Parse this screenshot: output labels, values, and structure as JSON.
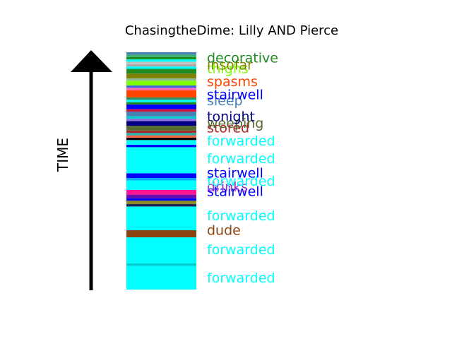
{
  "chart_data": {
    "type": "bar",
    "title": "ChasingtheDime: Lilly AND Pierce",
    "ylabel": "TIME",
    "ylim": [
      0,
      100
    ],
    "segments": [
      {
        "start": 0,
        "end": 10,
        "color": "#00ffff"
      },
      {
        "start": 10,
        "end": 11,
        "color": "#00cccc"
      },
      {
        "start": 11,
        "end": 22,
        "color": "#00ffff"
      },
      {
        "start": 22,
        "end": 25,
        "color": "#8b4513"
      },
      {
        "start": 25,
        "end": 35,
        "color": "#00ffff"
      },
      {
        "start": 35,
        "end": 36,
        "color": "#1e1e5a"
      },
      {
        "start": 36,
        "end": 37.5,
        "color": "#8a8a2a"
      },
      {
        "start": 37.5,
        "end": 38.5,
        "color": "#0000ff"
      },
      {
        "start": 38.5,
        "end": 40,
        "color": "#6a0dad"
      },
      {
        "start": 40,
        "end": 42,
        "color": "#ff1493"
      },
      {
        "start": 42,
        "end": 46,
        "color": "#00ffff"
      },
      {
        "start": 46,
        "end": 47,
        "color": "#00aaff"
      },
      {
        "start": 47,
        "end": 49,
        "color": "#0000ff"
      },
      {
        "start": 49,
        "end": 60,
        "color": "#00ffff"
      },
      {
        "start": 60,
        "end": 61,
        "color": "#0000ff"
      },
      {
        "start": 61,
        "end": 63,
        "color": "#00ffff"
      },
      {
        "start": 63,
        "end": 64,
        "color": "#000000"
      },
      {
        "start": 64,
        "end": 65,
        "color": "#ff6347"
      },
      {
        "start": 65,
        "end": 66,
        "color": "#20b2aa"
      },
      {
        "start": 66,
        "end": 67,
        "color": "#a52a2a"
      },
      {
        "start": 67,
        "end": 69,
        "color": "#556b2f"
      },
      {
        "start": 69,
        "end": 71,
        "color": "#000080"
      },
      {
        "start": 71,
        "end": 72,
        "color": "#9370db"
      },
      {
        "start": 72,
        "end": 73,
        "color": "#00ced1"
      },
      {
        "start": 73,
        "end": 75,
        "color": "#4682b4"
      },
      {
        "start": 75,
        "end": 76,
        "color": "#dc143c"
      },
      {
        "start": 76,
        "end": 78,
        "color": "#0000ff"
      },
      {
        "start": 78,
        "end": 79,
        "color": "#228b22"
      },
      {
        "start": 79,
        "end": 80,
        "color": "#00ffff"
      },
      {
        "start": 80,
        "end": 81,
        "color": "#2e8b57"
      },
      {
        "start": 81,
        "end": 84,
        "color": "#ff4500"
      },
      {
        "start": 84,
        "end": 85,
        "color": "#ff69b4"
      },
      {
        "start": 85,
        "end": 86,
        "color": "#4169e1"
      },
      {
        "start": 86,
        "end": 88,
        "color": "#7fff00"
      },
      {
        "start": 88,
        "end": 89,
        "color": "#8fbc8f"
      },
      {
        "start": 89,
        "end": 91,
        "color": "#808000"
      },
      {
        "start": 91,
        "end": 93,
        "color": "#228b22"
      },
      {
        "start": 93,
        "end": 94,
        "color": "#00ffff"
      },
      {
        "start": 94,
        "end": 95,
        "color": "#a9a9a9"
      },
      {
        "start": 95,
        "end": 96,
        "color": "#c0c0c0"
      },
      {
        "start": 96,
        "end": 97,
        "color": "#00ffff"
      },
      {
        "start": 97,
        "end": 98,
        "color": "#228b22"
      },
      {
        "start": 98,
        "end": 99,
        "color": "#3cb371"
      },
      {
        "start": 99,
        "end": 100,
        "color": "#4682b4"
      }
    ],
    "labels": [
      {
        "text": "forwarded",
        "y": 5,
        "color": "#00ffff"
      },
      {
        "text": "forwarded",
        "y": 17,
        "color": "#00ffff"
      },
      {
        "text": "dude",
        "y": 25.2,
        "color": "#8b4513"
      },
      {
        "text": "forwarded",
        "y": 31.3,
        "color": "#00ffff"
      },
      {
        "text": "stairwell",
        "y": 41.5,
        "color": "#0000ff"
      },
      {
        "text": "drinks",
        "y": 43.5,
        "color": "#9932cc"
      },
      {
        "text": "forwarded",
        "y": 45.8,
        "color": "#00ffff"
      },
      {
        "text": "stairwell",
        "y": 49.3,
        "color": "#0000ff"
      },
      {
        "text": "forwarded",
        "y": 55.3,
        "color": "#00ffff"
      },
      {
        "text": "forwarded",
        "y": 62.8,
        "color": "#00ffff"
      },
      {
        "text": "stored",
        "y": 68.3,
        "color": "#b22222"
      },
      {
        "text": "weeping",
        "y": 70.3,
        "color": "#556b2f"
      },
      {
        "text": "tonight",
        "y": 73,
        "color": "#000080"
      },
      {
        "text": "sleep",
        "y": 79.8,
        "color": "#4682b4"
      },
      {
        "text": "stairwell",
        "y": 82.3,
        "color": "#0000ff"
      },
      {
        "text": "spasms",
        "y": 87.8,
        "color": "#ff4500"
      },
      {
        "text": "thighs",
        "y": 93.3,
        "color": "#7fff00"
      },
      {
        "text": "insofar",
        "y": 94.8,
        "color": "#808000"
      },
      {
        "text": "decorative",
        "y": 97.8,
        "color": "#228b22"
      }
    ]
  }
}
